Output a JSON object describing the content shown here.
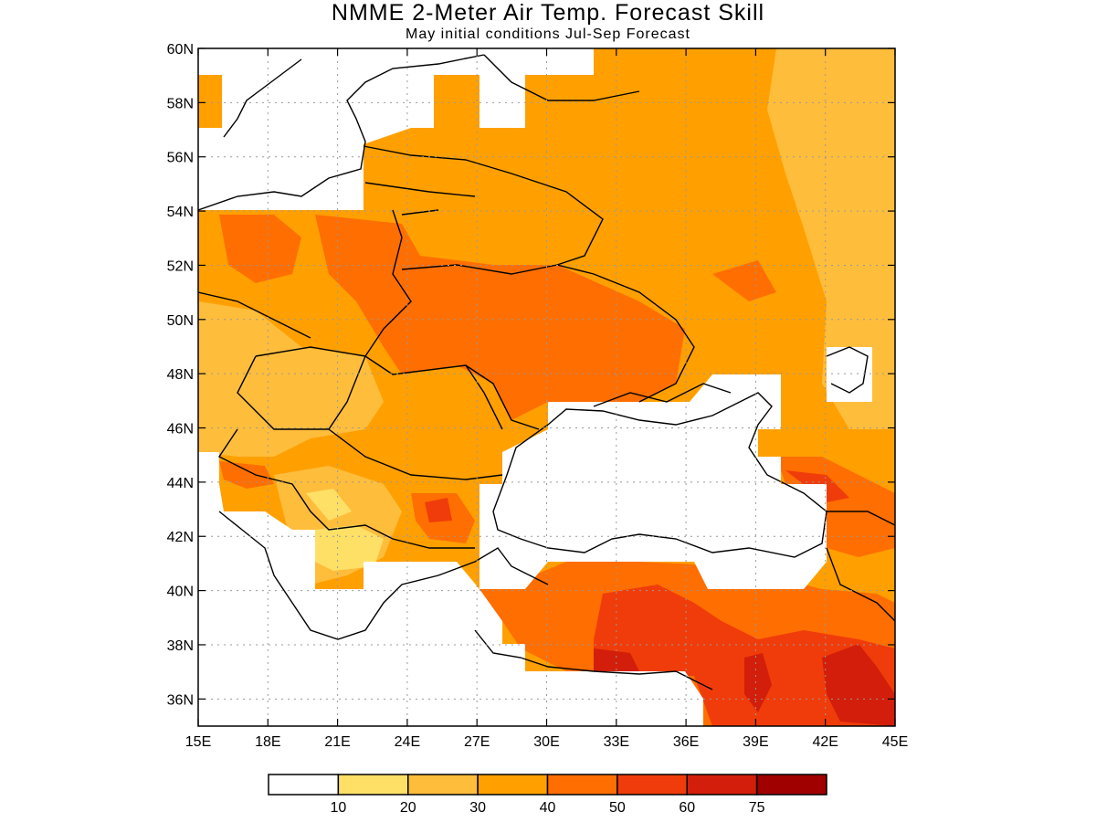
{
  "title": "NMME 2-Meter Air Temp. Forecast Skill",
  "subtitle": "May initial conditions  Jul-Sep Forecast",
  "map": {
    "lon_range": [
      15,
      45
    ],
    "lat_range": [
      35,
      60
    ],
    "lon_labels": [
      "15E",
      "18E",
      "21E",
      "24E",
      "27E",
      "30E",
      "33E",
      "36E",
      "39E",
      "42E",
      "45E"
    ],
    "lat_labels": [
      "60N",
      "58N",
      "56N",
      "54N",
      "52N",
      "50N",
      "48N",
      "46N",
      "44N",
      "42N",
      "40N",
      "38N",
      "36N"
    ],
    "gridlines": "dotted"
  },
  "colorbar": {
    "colors": [
      "#ffffff",
      "#ffe066",
      "#ffbd3c",
      "#ffa000",
      "#ff6e00",
      "#f03c0a",
      "#d21e0a",
      "#a00000"
    ],
    "labels": [
      "10",
      "20",
      "30",
      "40",
      "50",
      "60",
      "75"
    ]
  },
  "fills": {
    "c20": "#ffe066",
    "c30": "#ffbd3c",
    "c40": "#ffa000",
    "c50": "#ff6e00",
    "c60": "#f03c0a",
    "c75": "#d21e0a",
    "c100": "#a00000"
  }
}
